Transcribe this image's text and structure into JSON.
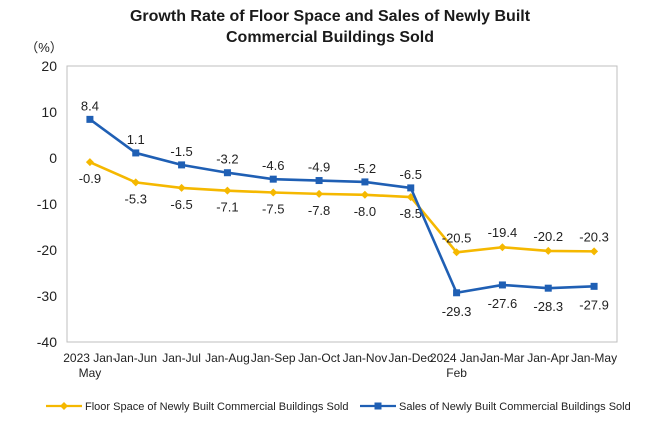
{
  "chart_data": {
    "type": "line",
    "title_line1": "Growth Rate of Floor Space and Sales of Newly Built",
    "title_line2": "Commercial Buildings Sold",
    "ylabel": "（%）",
    "ylim": [
      -40,
      20
    ],
    "yticks": [
      20,
      10,
      0,
      -10,
      -20,
      -30,
      -40
    ],
    "categories": [
      [
        "2023 Jan-",
        "May"
      ],
      [
        "Jan-Jun"
      ],
      [
        "Jan-Jul"
      ],
      [
        "Jan-Aug"
      ],
      [
        "Jan-Sep"
      ],
      [
        "Jan-Oct"
      ],
      [
        "Jan-Nov"
      ],
      [
        "Jan-Dec"
      ],
      [
        "2024 Jan-",
        "Feb"
      ],
      [
        "Jan-Mar"
      ],
      [
        "Jan-Apr"
      ],
      [
        "Jan-May"
      ]
    ],
    "series": [
      {
        "name": "Floor Space of Newly Built Commercial Buildings Sold",
        "color": "#f5b800",
        "marker": "diamond",
        "values": [
          -0.9,
          -5.3,
          -6.5,
          -7.1,
          -7.5,
          -7.8,
          -8.0,
          -8.5,
          -20.5,
          -19.4,
          -20.2,
          -20.3
        ],
        "labels": [
          "-0.9",
          "-5.3",
          "-6.5",
          "-7.1",
          "-7.5",
          "-7.8",
          "-8.0",
          "-8.5",
          "-20.5",
          "-19.4",
          "-20.2",
          "-20.3"
        ]
      },
      {
        "name": "Sales of Newly Built Commercial Buildings Sold",
        "color": "#1f5fb4",
        "marker": "square",
        "values": [
          8.4,
          1.1,
          -1.5,
          -3.2,
          -4.6,
          -4.9,
          -5.2,
          -6.5,
          -29.3,
          -27.6,
          -28.3,
          -27.9
        ],
        "labels": [
          "8.4",
          "1.1",
          "-1.5",
          "-3.2",
          "-4.6",
          "-4.9",
          "-5.2",
          "-6.5",
          "-29.3",
          "-27.6",
          "-28.3",
          "-27.9"
        ]
      }
    ],
    "legend_position": "bottom",
    "grid": false
  }
}
